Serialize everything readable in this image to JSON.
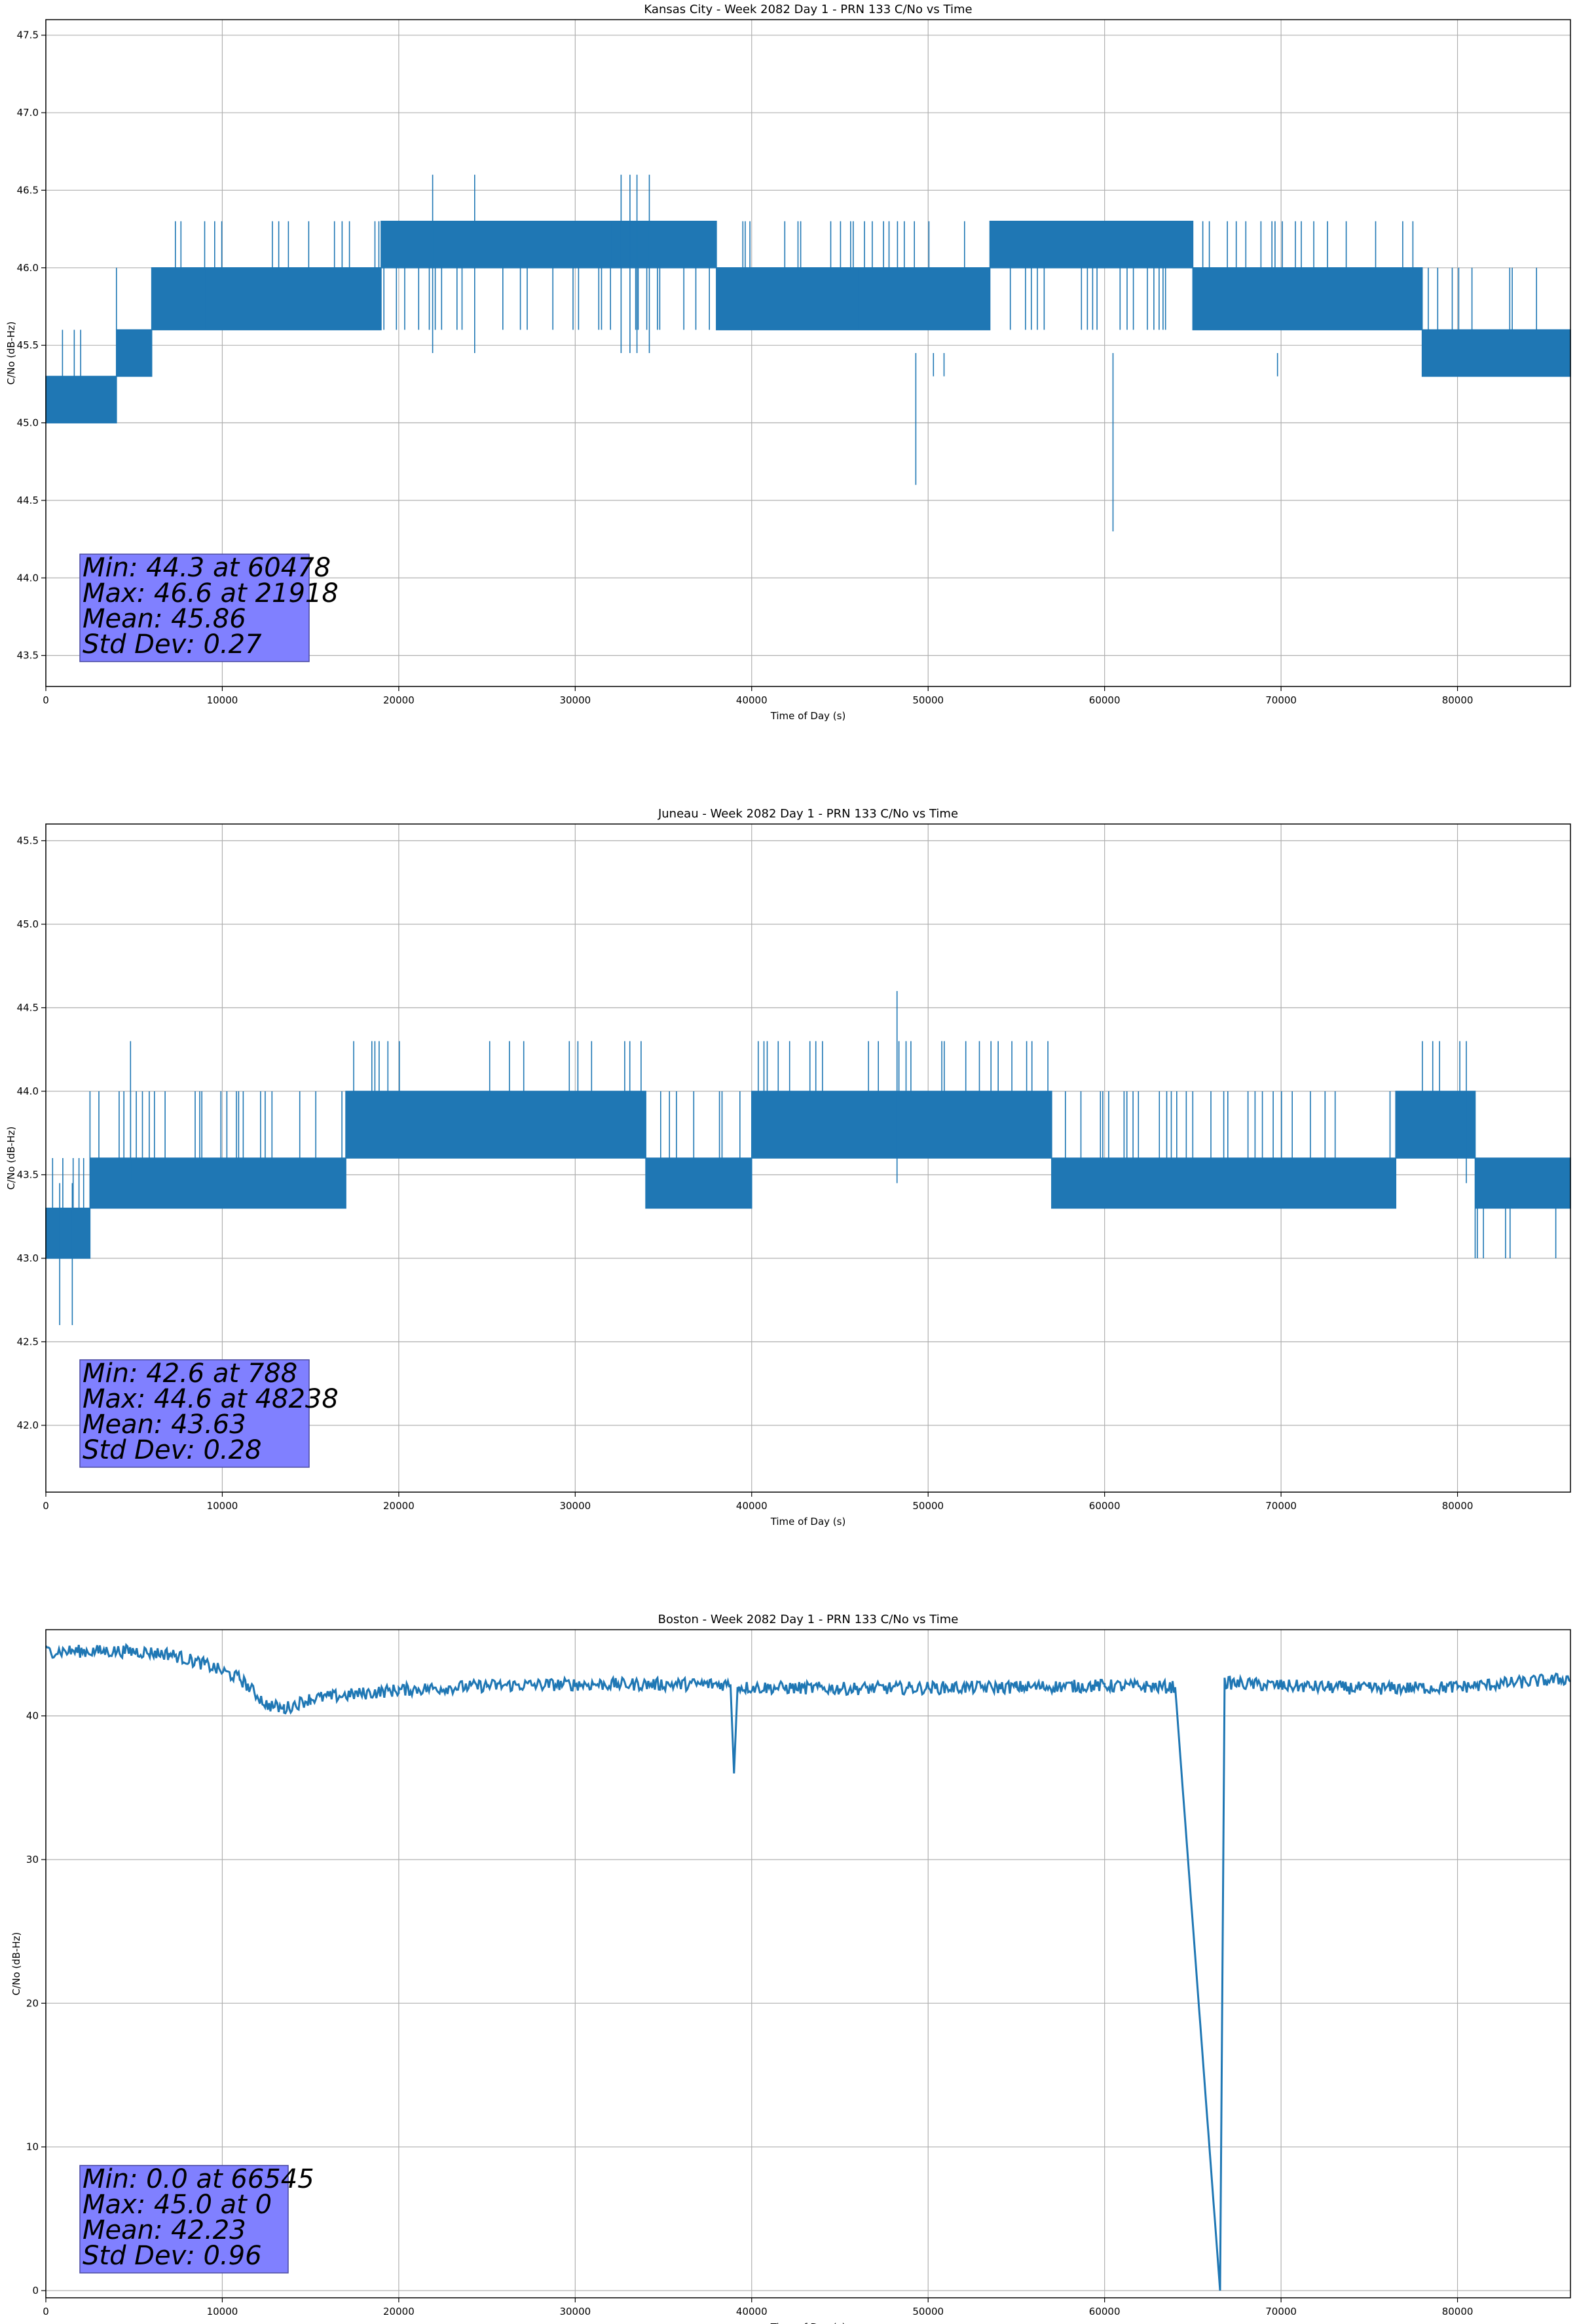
{
  "chart_data": [
    {
      "type": "line",
      "title": "Kansas City - Week 2082 Day 1 - PRN 133 C/No vs Time",
      "xlabel": "Time of Day (s)",
      "ylabel": "C/No (dB-Hz)",
      "xlim": [
        0,
        86400
      ],
      "ylim": [
        43.3,
        47.6
      ],
      "xticks": [
        0,
        10000,
        20000,
        30000,
        40000,
        50000,
        60000,
        70000,
        80000
      ],
      "yticks": [
        43.5,
        44.0,
        44.5,
        45.0,
        45.5,
        46.0,
        46.5,
        47.0,
        47.5
      ],
      "ytick_decimals": 1,
      "grid": true,
      "series_color": "#1f77b4",
      "stats_lines": [
        "Min: 44.3 at 60478",
        "Max: 46.6 at 21918",
        "Mean: 45.86",
        "Std Dev: 0.27"
      ],
      "stats_box_color": "#8080ff",
      "levels": [
        45.0,
        45.3,
        45.6,
        46.0,
        46.3
      ],
      "segments": [
        {
          "x0": 0,
          "x1": 4000,
          "band": [
            0,
            1
          ],
          "up": 2
        },
        {
          "x0": 4000,
          "x1": 6000,
          "band": [
            1,
            2
          ],
          "up": 3
        },
        {
          "x0": 6000,
          "x1": 9000,
          "band": [
            2,
            3
          ],
          "up": 4
        },
        {
          "x0": 9000,
          "x1": 19000,
          "band": [
            2,
            3
          ],
          "up": 4
        },
        {
          "x0": 19000,
          "x1": 32000,
          "band": [
            3,
            4
          ],
          "down": 2
        },
        {
          "x0": 32000,
          "x1": 38000,
          "band": [
            3,
            4
          ],
          "down": 2
        },
        {
          "x0": 38000,
          "x1": 46000,
          "band": [
            2,
            3
          ],
          "up": 4
        },
        {
          "x0": 46000,
          "x1": 53500,
          "band": [
            2,
            3
          ],
          "up": 4
        },
        {
          "x0": 53500,
          "x1": 65000,
          "band": [
            3,
            4
          ],
          "down": 2
        },
        {
          "x0": 65000,
          "x1": 78000,
          "band": [
            2,
            3
          ],
          "up": 4
        },
        {
          "x0": 78000,
          "x1": 86400,
          "band": [
            1,
            2
          ],
          "up": 3
        }
      ],
      "spikes": [
        {
          "x": 21918,
          "y": 46.6
        },
        {
          "x": 24300,
          "y": 46.6
        },
        {
          "x": 32600,
          "y": 46.6
        },
        {
          "x": 33100,
          "y": 46.6
        },
        {
          "x": 33500,
          "y": 46.6
        },
        {
          "x": 34200,
          "y": 46.6
        },
        {
          "x": 49300,
          "y": 44.6
        },
        {
          "x": 50300,
          "y": 45.3
        },
        {
          "x": 50900,
          "y": 45.3
        },
        {
          "x": 60478,
          "y": 44.3
        },
        {
          "x": 69800,
          "y": 45.3
        }
      ]
    },
    {
      "type": "line",
      "title": "Juneau - Week 2082 Day 1 - PRN 133 C/No vs Time",
      "xlabel": "Time of Day (s)",
      "ylabel": "C/No (dB-Hz)",
      "xlim": [
        0,
        86400
      ],
      "ylim": [
        41.6,
        45.6
      ],
      "xticks": [
        0,
        10000,
        20000,
        30000,
        40000,
        50000,
        60000,
        70000,
        80000
      ],
      "yticks": [
        42.0,
        42.5,
        43.0,
        43.5,
        44.0,
        44.5,
        45.0,
        45.5
      ],
      "ytick_decimals": 1,
      "grid": true,
      "series_color": "#1f77b4",
      "stats_lines": [
        "Min: 42.6 at 788",
        "Max: 44.6 at 48238",
        "Mean: 43.63",
        "Std Dev: 0.28"
      ],
      "stats_box_color": "#8080ff",
      "levels": [
        43.0,
        43.3,
        43.6,
        44.0,
        44.3
      ],
      "segments": [
        {
          "x0": 0,
          "x1": 2500,
          "band": [
            0,
            1
          ],
          "up": 2
        },
        {
          "x0": 2500,
          "x1": 17000,
          "band": [
            1,
            2
          ],
          "up": 3
        },
        {
          "x0": 17000,
          "x1": 34000,
          "band": [
            2,
            3
          ],
          "up": 4
        },
        {
          "x0": 34000,
          "x1": 40000,
          "band": [
            1,
            2
          ],
          "up": 3
        },
        {
          "x0": 40000,
          "x1": 57000,
          "band": [
            2,
            3
          ],
          "up": 4
        },
        {
          "x0": 57000,
          "x1": 76500,
          "band": [
            1,
            2
          ],
          "up": 3
        },
        {
          "x0": 76500,
          "x1": 81000,
          "band": [
            2,
            3
          ],
          "up": 4
        },
        {
          "x0": 81000,
          "x1": 86400,
          "band": [
            1,
            2
          ],
          "down": 0
        }
      ],
      "spikes": [
        {
          "x": 788,
          "y": 42.6
        },
        {
          "x": 1500,
          "y": 42.6
        },
        {
          "x": 48238,
          "y": 44.6
        },
        {
          "x": 4800,
          "y": 44.3
        },
        {
          "x": 80500,
          "y": 44.3
        }
      ]
    },
    {
      "type": "line",
      "title": "Boston - Week 2082 Day 1 - PRN 133 C/No vs Time",
      "xlabel": "Time of Day (s)",
      "ylabel": "C/No (dB-Hz)",
      "xlim": [
        0,
        86400
      ],
      "ylim": [
        -0.5,
        46
      ],
      "xticks": [
        0,
        10000,
        20000,
        30000,
        40000,
        50000,
        60000,
        70000,
        80000
      ],
      "yticks": [
        0,
        10,
        20,
        30,
        40
      ],
      "ytick_decimals": 0,
      "grid": true,
      "series_color": "#1f77b4",
      "stats_lines": [
        "Min: 0.0 at 66545",
        "Max: 45.0 at 0",
        "Mean: 42.23",
        "Std Dev: 0.96"
      ],
      "stats_box_color": "#8080ff",
      "trace": [
        [
          0,
          44.5
        ],
        [
          5000,
          44.5
        ],
        [
          7000,
          44.3
        ],
        [
          9000,
          43.6
        ],
        [
          11000,
          42.6
        ],
        [
          12500,
          40.8
        ],
        [
          13500,
          40.5
        ],
        [
          15000,
          41.2
        ],
        [
          20000,
          41.8
        ],
        [
          25000,
          42.1
        ],
        [
          30000,
          42.2
        ],
        [
          38800,
          42.2
        ],
        [
          39000,
          36
        ],
        [
          39200,
          42.0
        ],
        [
          45000,
          41.9
        ],
        [
          55000,
          42.0
        ],
        [
          60000,
          42.1
        ],
        [
          64000,
          42.0
        ],
        [
          66545,
          0.0
        ],
        [
          66800,
          42.3
        ],
        [
          70000,
          42.1
        ],
        [
          75000,
          41.9
        ],
        [
          80000,
          42.0
        ],
        [
          86400,
          42.6
        ]
      ],
      "noise": 0.45
    }
  ]
}
